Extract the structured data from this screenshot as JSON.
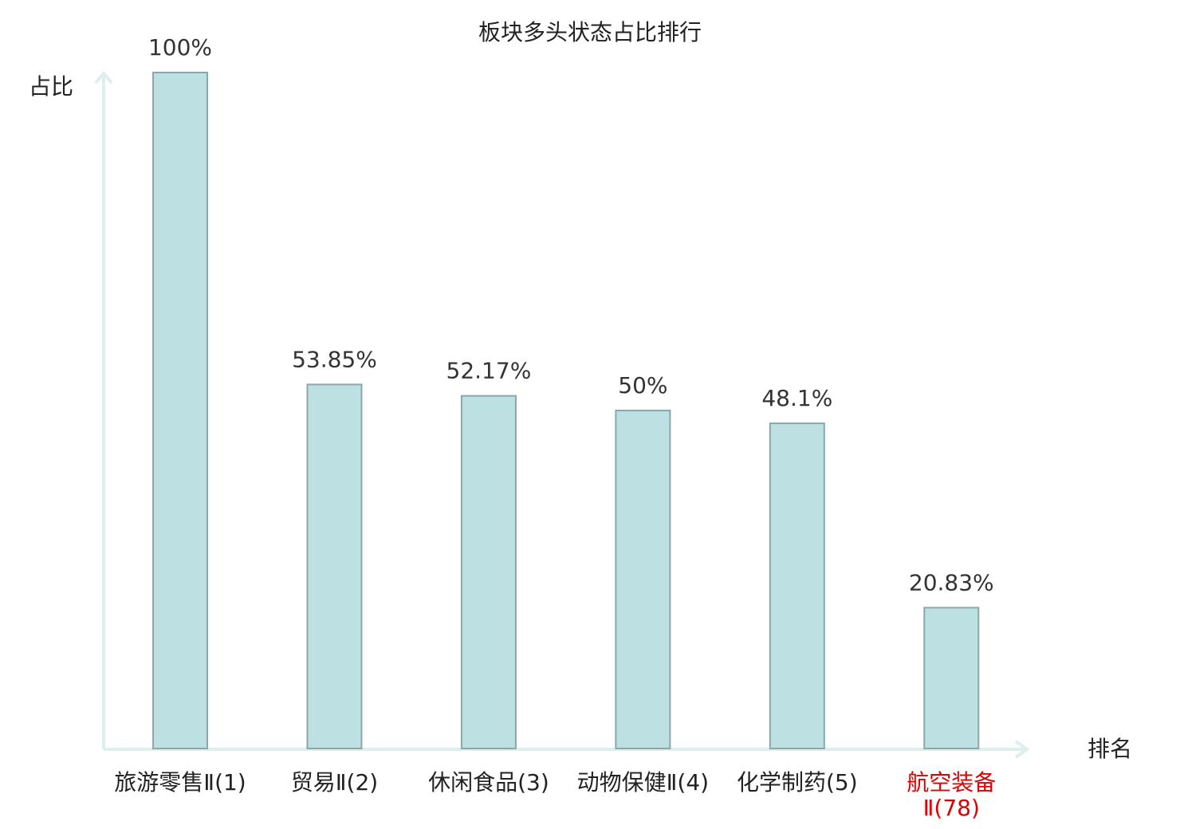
{
  "chart_data": {
    "type": "bar",
    "title": "板块多头状态占比排行",
    "y_label": "占比",
    "x_label": "排名",
    "categories": [
      "旅游零售Ⅱ(1)",
      "贸易Ⅱ(2)",
      "休闲食品(3)",
      "动物保健Ⅱ(4)",
      "化学制药(5)",
      "航空装备Ⅱ(78)"
    ],
    "values": [
      100,
      53.85,
      52.17,
      50,
      48.1,
      20.83
    ],
    "value_labels": [
      "100%",
      "53.85%",
      "52.17%",
      "50%",
      "48.1%",
      "20.83%"
    ],
    "label_colors": [
      "#222222",
      "#222222",
      "#222222",
      "#222222",
      "#222222",
      "#e00000"
    ],
    "color": "#bde0e2",
    "edge_color": "#8aa8aa",
    "ylim": [
      0,
      100
    ]
  }
}
